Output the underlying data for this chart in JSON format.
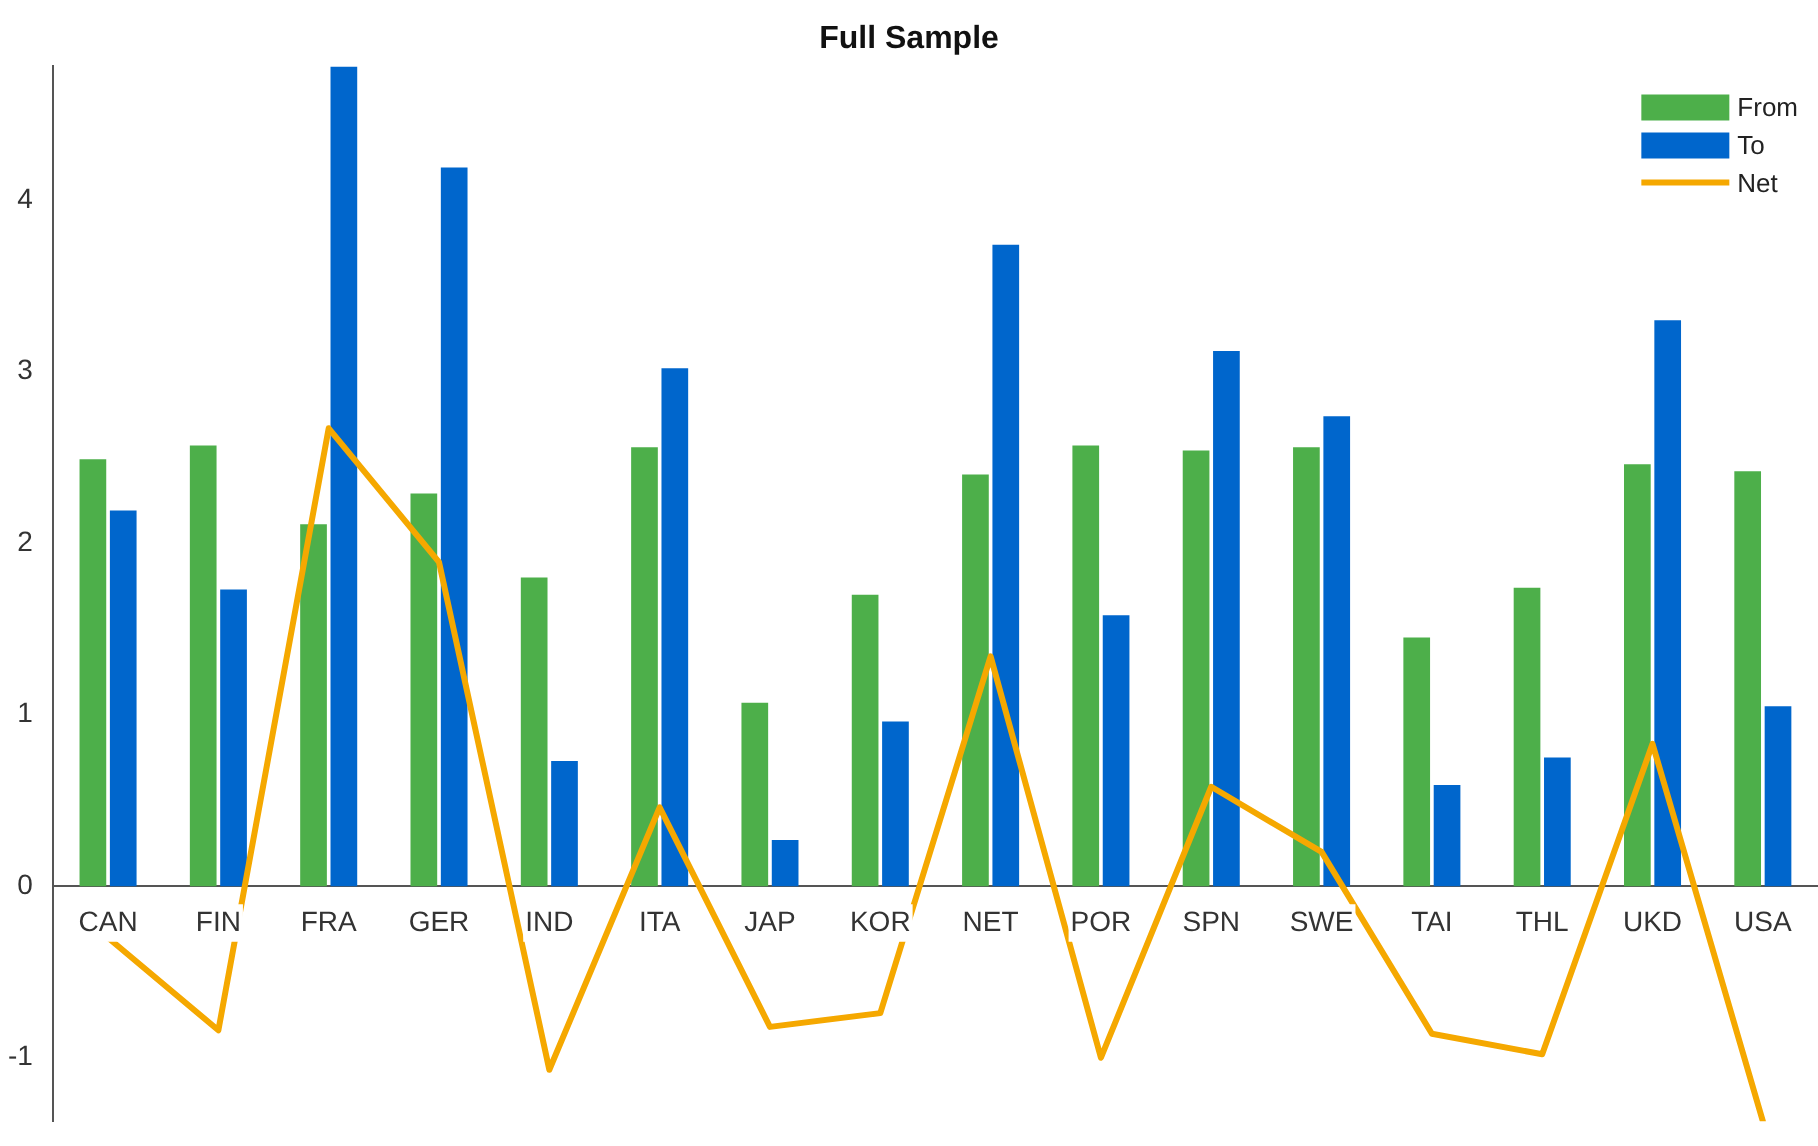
{
  "chart_data": {
    "type": "bar",
    "title": "Full Sample",
    "categories": [
      "CAN",
      "FIN",
      "FRA",
      "GER",
      "IND",
      "ITA",
      "JAP",
      "KOR",
      "NET",
      "POR",
      "SPN",
      "SWE",
      "TAI",
      "THL",
      "UKD",
      "USA"
    ],
    "series": [
      {
        "name": "From",
        "color": "#4daf4a",
        "values": [
          2.49,
          2.57,
          2.11,
          2.29,
          1.8,
          2.56,
          1.07,
          1.7,
          2.4,
          2.57,
          2.54,
          2.56,
          1.45,
          1.74,
          2.46,
          2.42
        ]
      },
      {
        "name": "To",
        "color": "#0066cc",
        "values": [
          2.19,
          1.73,
          4.78,
          4.19,
          0.73,
          3.02,
          0.27,
          0.96,
          3.74,
          1.58,
          3.12,
          2.74,
          0.59,
          0.75,
          3.3,
          1.05
        ]
      },
      {
        "name": "Net",
        "type": "line",
        "color": "#f5a800",
        "values": [
          -0.3,
          -0.84,
          2.67,
          1.89,
          -1.07,
          0.46,
          -0.82,
          -0.74,
          1.34,
          -1.0,
          0.58,
          0.2,
          -0.86,
          -0.98,
          0.83,
          -1.37
        ]
      }
    ],
    "ylim": [
      -1.37,
      4.78
    ],
    "yticks": [
      -1,
      0,
      1,
      2,
      3,
      4
    ],
    "grid": false,
    "legend": "top right",
    "marker": "none",
    "line_style": "solid"
  }
}
